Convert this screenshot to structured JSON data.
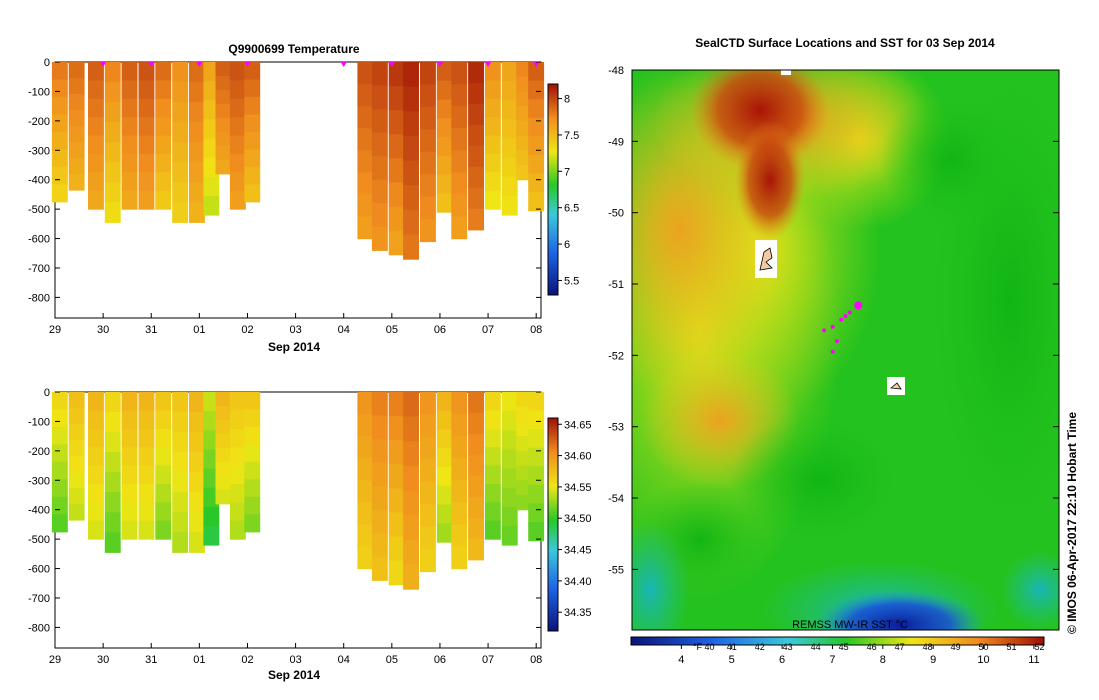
{
  "credit": "© IMOS 06-Apr-2017 22:10 Hobart Time",
  "colors": {
    "sst_hot": "#b01808",
    "sst_warm": "#f4a020",
    "sst_mid": "#f2e418",
    "sst_green": "#22c81e",
    "sst_cold": "#101ca0",
    "marker": "#ff00ff"
  },
  "chart_data": [
    {
      "type": "heatmap",
      "title": "Q9900699  Temperature",
      "xlabel": "Sep 2014",
      "x_ticks": [
        "29",
        "30",
        "31",
        "01",
        "02",
        "03",
        "04",
        "05",
        "06",
        "07",
        "08"
      ],
      "x_range": [
        29.0,
        39.1
      ],
      "y_ticks": [
        0,
        -100,
        -200,
        -300,
        -400,
        -500,
        -600,
        -700,
        -800
      ],
      "ylim": [
        -870,
        0
      ],
      "colorbar": {
        "ticks": [
          5.5,
          6,
          6.5,
          7,
          7.5,
          8
        ],
        "range": [
          5.3,
          8.2
        ]
      },
      "profiles": [
        {
          "t": 29.1,
          "depth": 475,
          "value": 7.8
        },
        {
          "t": 29.45,
          "depth": 435,
          "value": 7.85
        },
        {
          "t": 29.85,
          "depth": 500,
          "value": 7.9
        },
        {
          "t": 30.2,
          "depth": 545,
          "value": 7.75
        },
        {
          "t": 30.55,
          "depth": 500,
          "value": 7.9
        },
        {
          "t": 30.9,
          "depth": 500,
          "value": 7.95
        },
        {
          "t": 31.25,
          "depth": 500,
          "value": 7.85
        },
        {
          "t": 31.6,
          "depth": 545,
          "value": 7.7
        },
        {
          "t": 31.95,
          "depth": 545,
          "value": 7.85
        },
        {
          "t": 32.25,
          "depth": 520,
          "value": 7.6
        },
        {
          "t": 32.5,
          "depth": 380,
          "value": 7.9
        },
        {
          "t": 32.8,
          "depth": 500,
          "value": 7.95
        },
        {
          "t": 33.1,
          "depth": 475,
          "value": 7.9
        },
        {
          "t": 35.45,
          "depth": 600,
          "value": 7.95
        },
        {
          "t": 35.75,
          "depth": 640,
          "value": 8.0
        },
        {
          "t": 36.1,
          "depth": 655,
          "value": 8.05
        },
        {
          "t": 36.4,
          "depth": 670,
          "value": 8.12
        },
        {
          "t": 36.75,
          "depth": 610,
          "value": 8.0
        },
        {
          "t": 37.1,
          "depth": 510,
          "value": 7.9
        },
        {
          "t": 37.4,
          "depth": 600,
          "value": 7.95
        },
        {
          "t": 37.75,
          "depth": 570,
          "value": 8.1
        },
        {
          "t": 38.1,
          "depth": 500,
          "value": 7.7
        },
        {
          "t": 38.45,
          "depth": 520,
          "value": 7.6
        },
        {
          "t": 38.75,
          "depth": 400,
          "value": 7.75
        },
        {
          "t": 39.0,
          "depth": 505,
          "value": 7.9
        }
      ],
      "surface_markers": [
        30.0,
        31.0,
        32.0,
        33.0,
        35.0,
        36.0,
        37.0,
        38.0,
        39.0
      ]
    },
    {
      "type": "heatmap",
      "title": "",
      "xlabel": "Sep 2014",
      "x_ticks": [
        "29",
        "30",
        "31",
        "01",
        "02",
        "03",
        "04",
        "05",
        "06",
        "07",
        "08"
      ],
      "x_range": [
        29.0,
        39.1
      ],
      "y_ticks": [
        0,
        -100,
        -200,
        -300,
        -400,
        -500,
        -600,
        -700,
        -800
      ],
      "ylim": [
        -870,
        0
      ],
      "colorbar": {
        "ticks": [
          34.35,
          34.4,
          34.45,
          34.5,
          34.55,
          34.6,
          34.65
        ],
        "range": [
          34.32,
          34.66
        ]
      },
      "profiles": [
        {
          "t": 29.1,
          "depth": 475,
          "value": 34.56
        },
        {
          "t": 29.45,
          "depth": 435,
          "value": 34.575
        },
        {
          "t": 29.85,
          "depth": 500,
          "value": 34.58
        },
        {
          "t": 30.2,
          "depth": 545,
          "value": 34.56
        },
        {
          "t": 30.55,
          "depth": 500,
          "value": 34.58
        },
        {
          "t": 30.9,
          "depth": 500,
          "value": 34.58
        },
        {
          "t": 31.25,
          "depth": 500,
          "value": 34.57
        },
        {
          "t": 31.6,
          "depth": 545,
          "value": 34.57
        },
        {
          "t": 31.95,
          "depth": 545,
          "value": 34.58
        },
        {
          "t": 32.25,
          "depth": 520,
          "value": 34.54
        },
        {
          "t": 32.5,
          "depth": 380,
          "value": 34.58
        },
        {
          "t": 32.8,
          "depth": 500,
          "value": 34.57
        },
        {
          "t": 33.1,
          "depth": 475,
          "value": 34.57
        },
        {
          "t": 35.45,
          "depth": 600,
          "value": 34.6
        },
        {
          "t": 35.75,
          "depth": 640,
          "value": 34.61
        },
        {
          "t": 36.1,
          "depth": 655,
          "value": 34.61
        },
        {
          "t": 36.4,
          "depth": 670,
          "value": 34.62
        },
        {
          "t": 36.75,
          "depth": 610,
          "value": 34.6
        },
        {
          "t": 37.1,
          "depth": 510,
          "value": 34.58
        },
        {
          "t": 37.4,
          "depth": 600,
          "value": 34.6
        },
        {
          "t": 37.75,
          "depth": 570,
          "value": 34.615
        },
        {
          "t": 38.1,
          "depth": 500,
          "value": 34.56
        },
        {
          "t": 38.45,
          "depth": 520,
          "value": 34.55
        },
        {
          "t": 38.75,
          "depth": 400,
          "value": 34.56
        },
        {
          "t": 39.0,
          "depth": 505,
          "value": 34.56
        }
      ]
    },
    {
      "type": "heatmap",
      "title": "SealCTD Surface Locations and SST for 03 Sep 2014",
      "y_ticks": [
        -48,
        -49,
        -50,
        -51,
        -52,
        -53,
        -54,
        -55
      ],
      "ylim": [
        -55.85,
        -48.0
      ],
      "colorbar": {
        "label": "REMSS MW-IR SST °C",
        "celsius_ticks": [
          4,
          5,
          6,
          7,
          8,
          9,
          10,
          11
        ],
        "fahrenheit_ticks": [
          "°F 40",
          "41",
          "42",
          "43",
          "44",
          "45",
          "46",
          "47",
          "48",
          "49",
          "50",
          "51",
          "52"
        ],
        "range": [
          3.0,
          11.2
        ]
      },
      "sst_field_description_levels": {
        "north_channel": 11.0,
        "west": 9.2,
        "central": 8.6,
        "east": 6.8,
        "southwest": 6.2,
        "south": 5.0
      },
      "seal_locations": [
        {
          "lon_frac": 0.53,
          "lat": -51.3
        },
        {
          "lon_frac": 0.51,
          "lat": -51.4
        },
        {
          "lon_frac": 0.5,
          "lat": -51.45
        },
        {
          "lon_frac": 0.49,
          "lat": -51.5
        },
        {
          "lon_frac": 0.47,
          "lat": -51.6
        },
        {
          "lon_frac": 0.45,
          "lat": -51.65
        },
        {
          "lon_frac": 0.48,
          "lat": -51.8
        },
        {
          "lon_frac": 0.47,
          "lat": -51.95
        }
      ]
    }
  ]
}
